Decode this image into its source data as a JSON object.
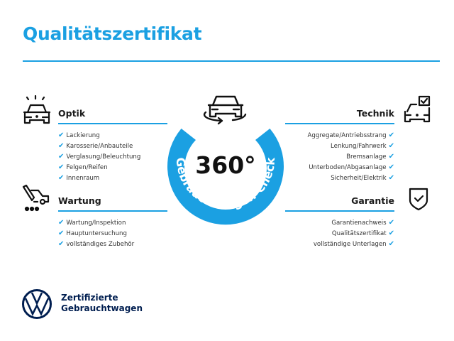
{
  "title": "Qualitätszertifikat",
  "center": {
    "big_text": "360°",
    "ring_text": "Gebrauchtwagen-Check"
  },
  "sections": {
    "optik": {
      "title": "Optik",
      "icon": "car-lights-icon",
      "items": [
        "Lackierung",
        "Karosserie/Anbauteile",
        "Verglasung/Beleuchtung",
        "Felgen/Reifen",
        "Innenraum"
      ]
    },
    "wartung": {
      "title": "Wartung",
      "icon": "service-tools-car-icon",
      "items": [
        "Wartung/Inspektion",
        "Hauptuntersuchung",
        "vollständiges Zubehör"
      ]
    },
    "technik": {
      "title": "Technik",
      "icon": "car-checkbox-icon",
      "items": [
        "Aggregate/Antriebsstrang",
        "Lenkung/Fahrwerk",
        "Bremsanlage",
        "Unterboden/Abgasanlage",
        "Sicherheit/Elektrik"
      ]
    },
    "garantie": {
      "title": "Garantie",
      "icon": "shield-check-icon",
      "items": [
        "Garantienachweis",
        "Qualitätszertifikat",
        "vollständige Unterlagen"
      ]
    }
  },
  "check_mark": "✔",
  "brand": {
    "line1": "Zertifizierte",
    "line2": "Gebrauchtwagen",
    "logo": "VW"
  },
  "colors": {
    "accent": "#1ba0e2",
    "brand": "#001e50",
    "text": "#1a1a1a"
  }
}
